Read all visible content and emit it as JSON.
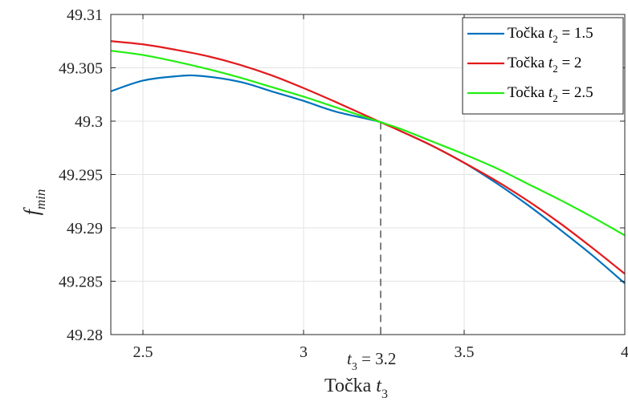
{
  "chart_data": {
    "type": "line",
    "xlabel": {
      "text": "Točka",
      "var": "t",
      "sub": "3"
    },
    "ylabel": {
      "var": "f",
      "sub": "min"
    },
    "xlim": [
      2.4,
      4.0
    ],
    "ylim": [
      49.28,
      49.31
    ],
    "xticks": [
      2.5,
      3,
      3.5,
      4
    ],
    "xtick_labels": [
      "2.5",
      "3",
      "3.5",
      "4"
    ],
    "yticks": [
      49.28,
      49.285,
      49.29,
      49.295,
      49.3,
      49.305,
      49.31
    ],
    "ytick_labels": [
      "49.28",
      "49.285",
      "49.29",
      "49.295",
      "49.3",
      "49.305",
      "49.31"
    ],
    "grid": true,
    "legend_position": "top-right",
    "series": [
      {
        "name": "Točka",
        "legend": {
          "var": "t",
          "sub": "2",
          "rest": " = 1.5"
        },
        "color": "#0072BD",
        "x": [
          2.4,
          2.5,
          2.6,
          2.675,
          2.8,
          2.9,
          3.0,
          3.1,
          3.24,
          3.3,
          3.4,
          3.5,
          3.6,
          3.7,
          3.8,
          3.9,
          4.0
        ],
        "y": [
          49.3028,
          49.3038,
          49.3042,
          49.30425,
          49.3037,
          49.3028,
          49.3019,
          49.3009,
          49.2999,
          49.2991,
          49.2977,
          49.2961,
          49.2942,
          49.2921,
          49.2898,
          49.2874,
          49.2848
        ]
      },
      {
        "name": "Točka",
        "legend": {
          "var": "t",
          "sub": "2",
          "rest": " = 2"
        },
        "color": "#E31A1C",
        "x": [
          2.4,
          2.5,
          2.6,
          2.7,
          2.8,
          2.9,
          3.0,
          3.1,
          3.24,
          3.3,
          3.4,
          3.5,
          3.6,
          3.7,
          3.8,
          3.9,
          4.0
        ],
        "y": [
          49.3075,
          49.3072,
          49.3067,
          49.3061,
          49.3053,
          49.3043,
          49.3031,
          49.3018,
          49.2999,
          49.2991,
          49.2977,
          49.2961,
          49.2944,
          49.2925,
          49.2904,
          49.2881,
          49.2857
        ]
      },
      {
        "name": "Točka",
        "legend": {
          "var": "t",
          "sub": "2",
          "rest": " = 2.5"
        },
        "color": "#22EE11",
        "x": [
          2.4,
          2.5,
          2.6,
          2.7,
          2.8,
          2.9,
          3.0,
          3.1,
          3.24,
          3.3,
          3.4,
          3.5,
          3.6,
          3.7,
          3.8,
          3.9,
          4.0
        ],
        "y": [
          49.3066,
          49.3062,
          49.3056,
          49.3049,
          49.3041,
          49.3032,
          49.3023,
          49.3013,
          49.2999,
          49.2993,
          49.2981,
          49.2969,
          49.2956,
          49.2941,
          49.2926,
          49.291,
          49.2893
        ]
      }
    ],
    "annotation": {
      "x": 3.24,
      "y": 49.2999,
      "line_style": "dashed",
      "label": {
        "var": "t",
        "sub": "3",
        "rest": " = 3.2"
      }
    }
  }
}
